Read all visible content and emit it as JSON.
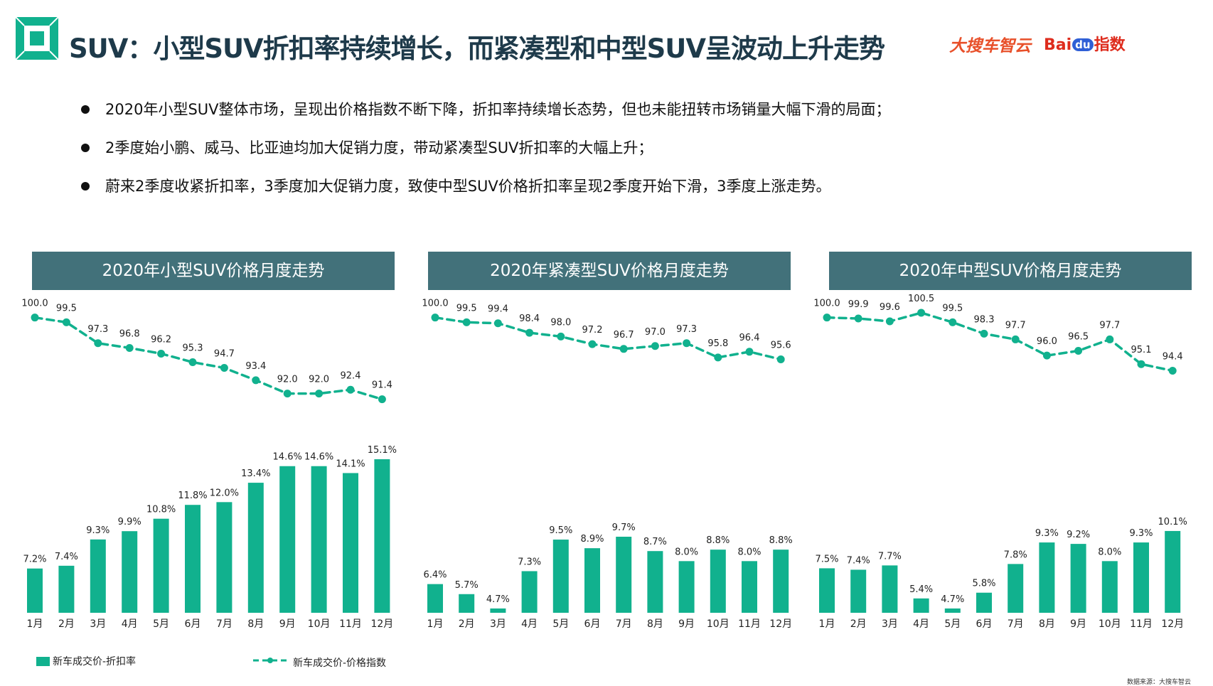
{
  "header": {
    "title": "SUV：小型SUV折扣率持续增长，而紧凑型和中型SUV呈波动上升走势",
    "brand_primary": "大搜车智云",
    "brand_secondary_prefix": "Bai",
    "brand_secondary_du": "du",
    "brand_secondary_suffix": "指数"
  },
  "bullets": [
    "2020年小型SUV整体市场，呈现出价格指数不断下降，折扣率持续增长态势，但也未能扭转市场销量大幅下滑的局面；",
    "2季度始小鹏、威马、比亚迪均加大促销力度，带动紧凑型SUV折扣率的大幅上升；",
    "蔚来2季度收紧折扣率，3季度加大促销力度，致使中型SUV价格折扣率呈现2季度开始下滑，3季度上涨走势。"
  ],
  "colors": {
    "bar": "#11b18e",
    "line": "#11b18e",
    "panel_title_bg": "#42717a",
    "title_text": "#1e3a4a"
  },
  "legend": {
    "bar_label": "新车成交价-折扣率",
    "line_label": "新车成交价-价格指数"
  },
  "source": "数据来源：大搜车智云",
  "chart_data": [
    {
      "type": "bar+line",
      "title": "2020年小型SUV价格月度走势",
      "categories": [
        "1月",
        "2月",
        "3月",
        "4月",
        "5月",
        "6月",
        "7月",
        "8月",
        "9月",
        "10月",
        "11月",
        "12月"
      ],
      "series": [
        {
          "name": "新车成交价-价格指数",
          "kind": "line",
          "values": [
            100.0,
            99.5,
            97.3,
            96.8,
            96.2,
            95.3,
            94.7,
            93.4,
            92.0,
            92.0,
            92.4,
            91.4
          ],
          "labels": [
            "100.0",
            "99.5",
            "97.3",
            "96.8",
            "96.2",
            "95.3",
            "94.7",
            "93.4",
            "92.0",
            "92.0",
            "92.4",
            "91.4"
          ]
        },
        {
          "name": "新车成交价-折扣率",
          "kind": "bar",
          "unit": "%",
          "values": [
            7.2,
            7.4,
            9.3,
            9.9,
            10.8,
            11.8,
            12.0,
            13.4,
            14.6,
            14.6,
            14.1,
            15.1
          ],
          "labels": [
            "7.2%",
            "7.4%",
            "9.3%",
            "9.9%",
            "10.8%",
            "11.8%",
            "12.0%",
            "13.4%",
            "14.6%",
            "14.6%",
            "14.1%",
            "15.1%"
          ]
        }
      ],
      "line_range": [
        91,
        100.5
      ],
      "bar_range": [
        4,
        15.1
      ]
    },
    {
      "type": "bar+line",
      "title": "2020年紧凑型SUV价格月度走势",
      "categories": [
        "1月",
        "2月",
        "3月",
        "4月",
        "5月",
        "6月",
        "7月",
        "8月",
        "9月",
        "10月",
        "11月",
        "12月"
      ],
      "series": [
        {
          "name": "新车成交价-价格指数",
          "kind": "line",
          "values": [
            100.0,
            99.5,
            99.4,
            98.4,
            98.0,
            97.2,
            96.7,
            97.0,
            97.3,
            95.8,
            96.4,
            95.6
          ],
          "labels": [
            "100.0",
            "99.5",
            "99.4",
            "98.4",
            "98.0",
            "97.2",
            "96.7",
            "97.0",
            "97.3",
            "95.8",
            "96.4",
            "95.6"
          ]
        },
        {
          "name": "新车成交价-折扣率",
          "kind": "bar",
          "unit": "%",
          "values": [
            6.4,
            5.7,
            4.7,
            7.3,
            9.5,
            8.9,
            9.7,
            8.7,
            8.0,
            8.8,
            8.0,
            8.8
          ],
          "labels": [
            "6.4%",
            "5.7%",
            "4.7%",
            "7.3%",
            "9.5%",
            "8.9%",
            "9.7%",
            "8.7%",
            "8.0%",
            "8.8%",
            "8.0%",
            "8.8%"
          ]
        }
      ],
      "line_range": [
        91,
        100.5
      ],
      "bar_range": [
        4.4,
        15.1
      ]
    },
    {
      "type": "bar+line",
      "title": "2020年中型SUV价格月度走势",
      "categories": [
        "1月",
        "2月",
        "3月",
        "4月",
        "5月",
        "6月",
        "7月",
        "8月",
        "9月",
        "10月",
        "11月",
        "12月"
      ],
      "series": [
        {
          "name": "新车成交价-价格指数",
          "kind": "line",
          "values": [
            100.0,
            99.9,
            99.6,
            100.5,
            99.5,
            98.3,
            97.7,
            96.0,
            96.5,
            97.7,
            95.1,
            94.4
          ],
          "labels": [
            "100.0",
            "99.9",
            "99.6",
            "100.5",
            "99.5",
            "98.3",
            "97.7",
            "96.0",
            "96.5",
            "97.7",
            "95.1",
            "94.4"
          ]
        },
        {
          "name": "新车成交价-折扣率",
          "kind": "bar",
          "unit": "%",
          "values": [
            7.5,
            7.4,
            7.7,
            5.4,
            4.7,
            5.8,
            7.8,
            9.3,
            9.2,
            8.0,
            9.3,
            10.1
          ],
          "labels": [
            "7.5%",
            "7.4%",
            "7.7%",
            "5.4%",
            "4.7%",
            "5.8%",
            "7.8%",
            "9.3%",
            "9.2%",
            "8.0%",
            "9.3%",
            "10.1%"
          ]
        }
      ],
      "line_range": [
        91,
        100.5
      ],
      "bar_range": [
        4.4,
        15.1
      ]
    }
  ]
}
